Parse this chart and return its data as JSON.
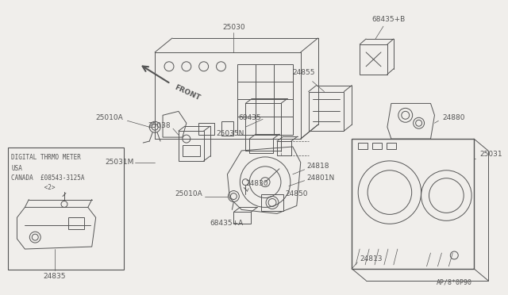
{
  "bg_color": "#f0eeeb",
  "line_color": "#555555",
  "fig_width": 6.4,
  "fig_height": 3.72,
  "dpi": 100,
  "watermark": "AP/8*0P90",
  "inset_labels": [
    "DIGITAL THRMO METER",
    "USA",
    "CANADA  £08543-3125A",
    "         <2>"
  ]
}
